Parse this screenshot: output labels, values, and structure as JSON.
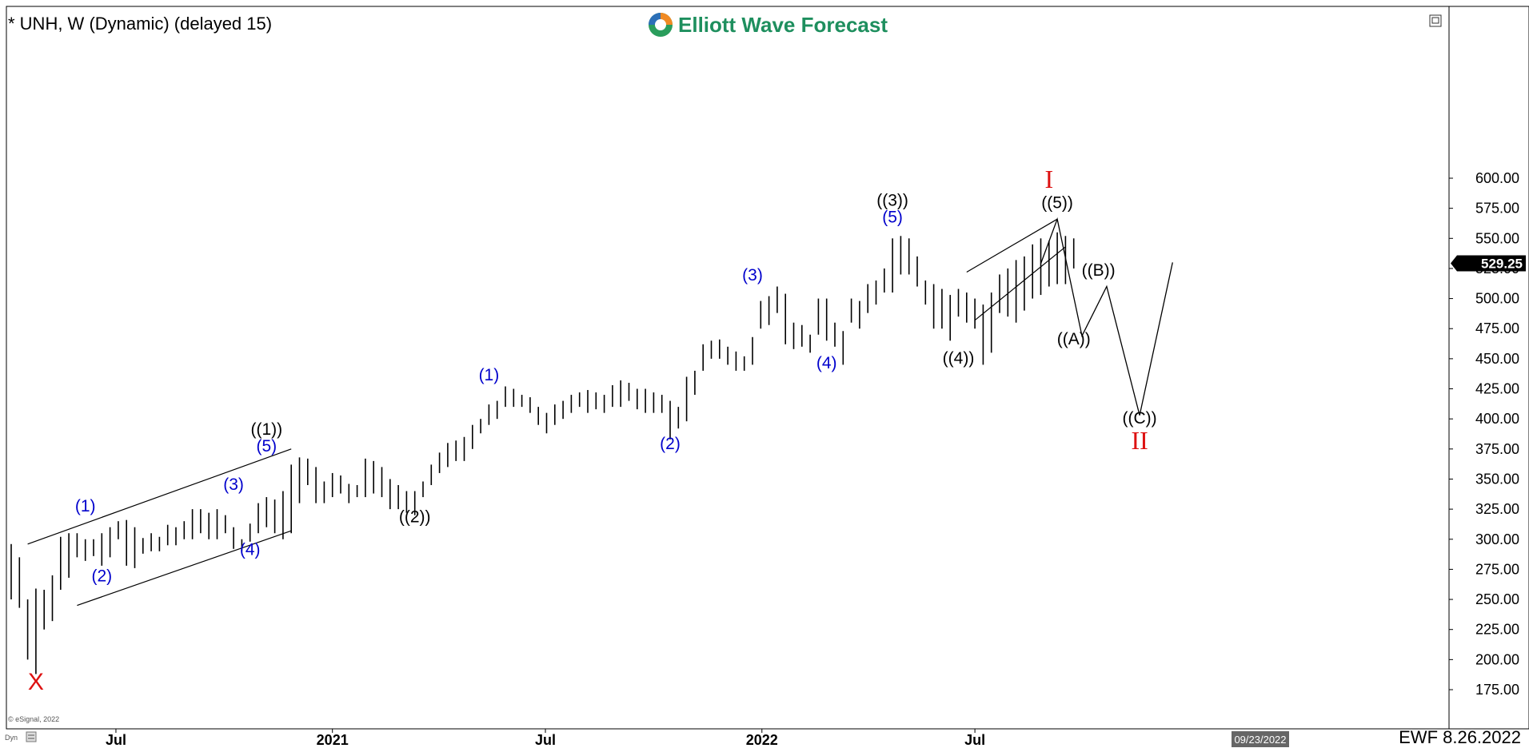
{
  "header": {
    "symbol_title": "* UNH, W (Dynamic) (delayed 15)",
    "brand": "Elliott Wave Forecast",
    "footer_stamp": "EWF 8.26.2022",
    "copyright": "© eSignal, 2022",
    "cursor_date": "09/23/2022",
    "dyn_label": "Dyn"
  },
  "colors": {
    "bars": "#000000",
    "minor_wave": "#0000cc",
    "major_wave": "#000000",
    "primary_wave": "#dd1111",
    "brand_text": "#1e8f5e",
    "price_tag_bg": "#000000",
    "date_tag_bg": "#666666"
  },
  "chart_data": {
    "type": "ohlc",
    "interval": "weekly",
    "y_axis": {
      "range": [
        163,
        612
      ],
      "ticks": [
        175,
        200,
        225,
        250,
        275,
        300,
        325,
        350,
        375,
        400,
        425,
        450,
        475,
        500,
        525,
        550,
        575,
        600
      ],
      "tick_labels": [
        "175.00",
        "200.00",
        "225.00",
        "250.00",
        "275.00",
        "300.00",
        "325.00",
        "350.00",
        "375.00",
        "400.00",
        "425.00",
        "450.00",
        "475.00",
        "500.00",
        "525.00",
        "550.00",
        "575.00",
        "600.00"
      ],
      "side": "right"
    },
    "x_axis": {
      "range": [
        "2020-04-03",
        "2022-12-16"
      ],
      "ticks": [
        {
          "label": "Jul",
          "date": "2020-07-01"
        },
        {
          "label": "2021",
          "date": "2021-01-01"
        },
        {
          "label": "Jul",
          "date": "2021-07-01"
        },
        {
          "label": "2022",
          "date": "2022-01-01"
        },
        {
          "label": "Jul",
          "date": "2022-07-01"
        }
      ]
    },
    "current_price": {
      "value": 529.25,
      "label": "529.25"
    },
    "bars_hl": [
      [
        250,
        296
      ],
      [
        243,
        285
      ],
      [
        200,
        250
      ],
      [
        188,
        259
      ],
      [
        225,
        258
      ],
      [
        232,
        270
      ],
      [
        258,
        302
      ],
      [
        268,
        305
      ],
      [
        285,
        305
      ],
      [
        282,
        300
      ],
      [
        286,
        300
      ],
      [
        278,
        305
      ],
      [
        285,
        310
      ],
      [
        300,
        315
      ],
      [
        278,
        316
      ],
      [
        276,
        310
      ],
      [
        288,
        301
      ],
      [
        290,
        305
      ],
      [
        290,
        302
      ],
      [
        295,
        312
      ],
      [
        295,
        310
      ],
      [
        300,
        315
      ],
      [
        300,
        325
      ],
      [
        305,
        325
      ],
      [
        300,
        322
      ],
      [
        300,
        325
      ],
      [
        305,
        320
      ],
      [
        292,
        310
      ],
      [
        290,
        300
      ],
      [
        298,
        313
      ],
      [
        305,
        330
      ],
      [
        310,
        335
      ],
      [
        305,
        333
      ],
      [
        300,
        340
      ],
      [
        305,
        362
      ],
      [
        330,
        368
      ],
      [
        345,
        367
      ],
      [
        330,
        360
      ],
      [
        330,
        348
      ],
      [
        335,
        355
      ],
      [
        338,
        353
      ],
      [
        330,
        346
      ],
      [
        335,
        345
      ],
      [
        335,
        367
      ],
      [
        338,
        365
      ],
      [
        335,
        360
      ],
      [
        325,
        350
      ],
      [
        325,
        345
      ],
      [
        322,
        340
      ],
      [
        320,
        340
      ],
      [
        335,
        348
      ],
      [
        345,
        362
      ],
      [
        355,
        372
      ],
      [
        360,
        380
      ],
      [
        365,
        382
      ],
      [
        365,
        385
      ],
      [
        375,
        395
      ],
      [
        388,
        400
      ],
      [
        395,
        412
      ],
      [
        400,
        415
      ],
      [
        410,
        427
      ],
      [
        410,
        425
      ],
      [
        410,
        420
      ],
      [
        405,
        418
      ],
      [
        395,
        410
      ],
      [
        388,
        405
      ],
      [
        395,
        412
      ],
      [
        400,
        415
      ],
      [
        405,
        420
      ],
      [
        410,
        422
      ],
      [
        405,
        424
      ],
      [
        408,
        422
      ],
      [
        405,
        420
      ],
      [
        410,
        428
      ],
      [
        410,
        432
      ],
      [
        415,
        430
      ],
      [
        408,
        425
      ],
      [
        405,
        425
      ],
      [
        405,
        422
      ],
      [
        405,
        420
      ],
      [
        383,
        415
      ],
      [
        392,
        410
      ],
      [
        398,
        435
      ],
      [
        420,
        440
      ],
      [
        440,
        462
      ],
      [
        450,
        465
      ],
      [
        450,
        466
      ],
      [
        445,
        460
      ],
      [
        440,
        456
      ],
      [
        440,
        452
      ],
      [
        445,
        468
      ],
      [
        475,
        498
      ],
      [
        478,
        502
      ],
      [
        488,
        510
      ],
      [
        462,
        504
      ],
      [
        458,
        480
      ],
      [
        460,
        478
      ],
      [
        455,
        470
      ],
      [
        470,
        500
      ],
      [
        465,
        500
      ],
      [
        460,
        480
      ],
      [
        445,
        473
      ],
      [
        480,
        500
      ],
      [
        475,
        498
      ],
      [
        488,
        512
      ],
      [
        495,
        515
      ],
      [
        505,
        525
      ],
      [
        505,
        550
      ],
      [
        520,
        552
      ],
      [
        520,
        550
      ],
      [
        510,
        535
      ],
      [
        495,
        515
      ],
      [
        475,
        512
      ],
      [
        475,
        508
      ],
      [
        465,
        503
      ],
      [
        485,
        508
      ],
      [
        480,
        505
      ],
      [
        475,
        500
      ],
      [
        445,
        495
      ],
      [
        455,
        505
      ],
      [
        488,
        520
      ],
      [
        485,
        525
      ],
      [
        480,
        532
      ],
      [
        490,
        535
      ],
      [
        500,
        545
      ],
      [
        503,
        550
      ],
      [
        510,
        548
      ],
      [
        512,
        555
      ],
      [
        512,
        552
      ],
      [
        525,
        550
      ]
    ],
    "annotations": [
      {
        "text": "X",
        "kind": "primary",
        "date": "2020-04-24",
        "price": 175
      },
      {
        "text": "(1)",
        "kind": "minor",
        "date": "2020-06-05",
        "price": 323
      },
      {
        "text": "(2)",
        "kind": "minor",
        "date": "2020-06-19",
        "price": 265
      },
      {
        "text": "(3)",
        "kind": "minor",
        "date": "2020-10-09",
        "price": 341
      },
      {
        "text": "(4)",
        "kind": "minor",
        "date": "2020-10-23",
        "price": 287
      },
      {
        "text": "(5)",
        "kind": "minor",
        "date": "2020-11-06",
        "price": 373
      },
      {
        "text": "((1))",
        "kind": "major",
        "date": "2020-11-06",
        "price": 387
      },
      {
        "text": "((2))",
        "kind": "major",
        "date": "2021-03-12",
        "price": 314
      },
      {
        "text": "(1)",
        "kind": "minor",
        "date": "2021-05-14",
        "price": 432
      },
      {
        "text": "(2)",
        "kind": "minor",
        "date": "2021-10-15",
        "price": 375
      },
      {
        "text": "(3)",
        "kind": "minor",
        "date": "2021-12-24",
        "price": 515
      },
      {
        "text": "(4)",
        "kind": "minor",
        "date": "2022-02-25",
        "price": 442
      },
      {
        "text": "(5)",
        "kind": "minor",
        "date": "2022-04-22",
        "price": 563
      },
      {
        "text": "((3))",
        "kind": "major",
        "date": "2022-04-22",
        "price": 577
      },
      {
        "text": "((4))",
        "kind": "major",
        "date": "2022-06-17",
        "price": 446
      },
      {
        "text": "((5))",
        "kind": "major",
        "date": "2022-09-09",
        "price": 575
      },
      {
        "text": "I",
        "kind": "primary",
        "date": "2022-09-02",
        "price": 592
      },
      {
        "text": "((A))",
        "kind": "major",
        "date": "2022-09-23",
        "price": 462
      },
      {
        "text": "((B))",
        "kind": "major",
        "date": "2022-10-14",
        "price": 519
      },
      {
        "text": "((C))",
        "kind": "major",
        "date": "2022-11-18",
        "price": 396
      },
      {
        "text": "II",
        "kind": "primary",
        "date": "2022-11-18",
        "price": 375
      }
    ],
    "channel_lines": [
      {
        "from": {
          "date": "2020-04-17",
          "price": 296
        },
        "to": {
          "date": "2020-11-27",
          "price": 375
        }
      },
      {
        "from": {
          "date": "2020-05-29",
          "price": 245
        },
        "to": {
          "date": "2020-11-27",
          "price": 307
        }
      },
      {
        "from": {
          "date": "2022-06-24",
          "price": 522
        },
        "to": {
          "date": "2022-09-09",
          "price": 566
        }
      },
      {
        "from": {
          "date": "2022-07-01",
          "price": 482
        },
        "to": {
          "date": "2022-09-16",
          "price": 543
        }
      }
    ],
    "projection_path": [
      {
        "date": "2022-08-26",
        "price": 529
      },
      {
        "date": "2022-09-09",
        "price": 566
      },
      {
        "date": "2022-09-30",
        "price": 469
      },
      {
        "date": "2022-10-21",
        "price": 510
      },
      {
        "date": "2022-11-18",
        "price": 403
      },
      {
        "date": "2022-12-16",
        "price": 530
      }
    ]
  }
}
